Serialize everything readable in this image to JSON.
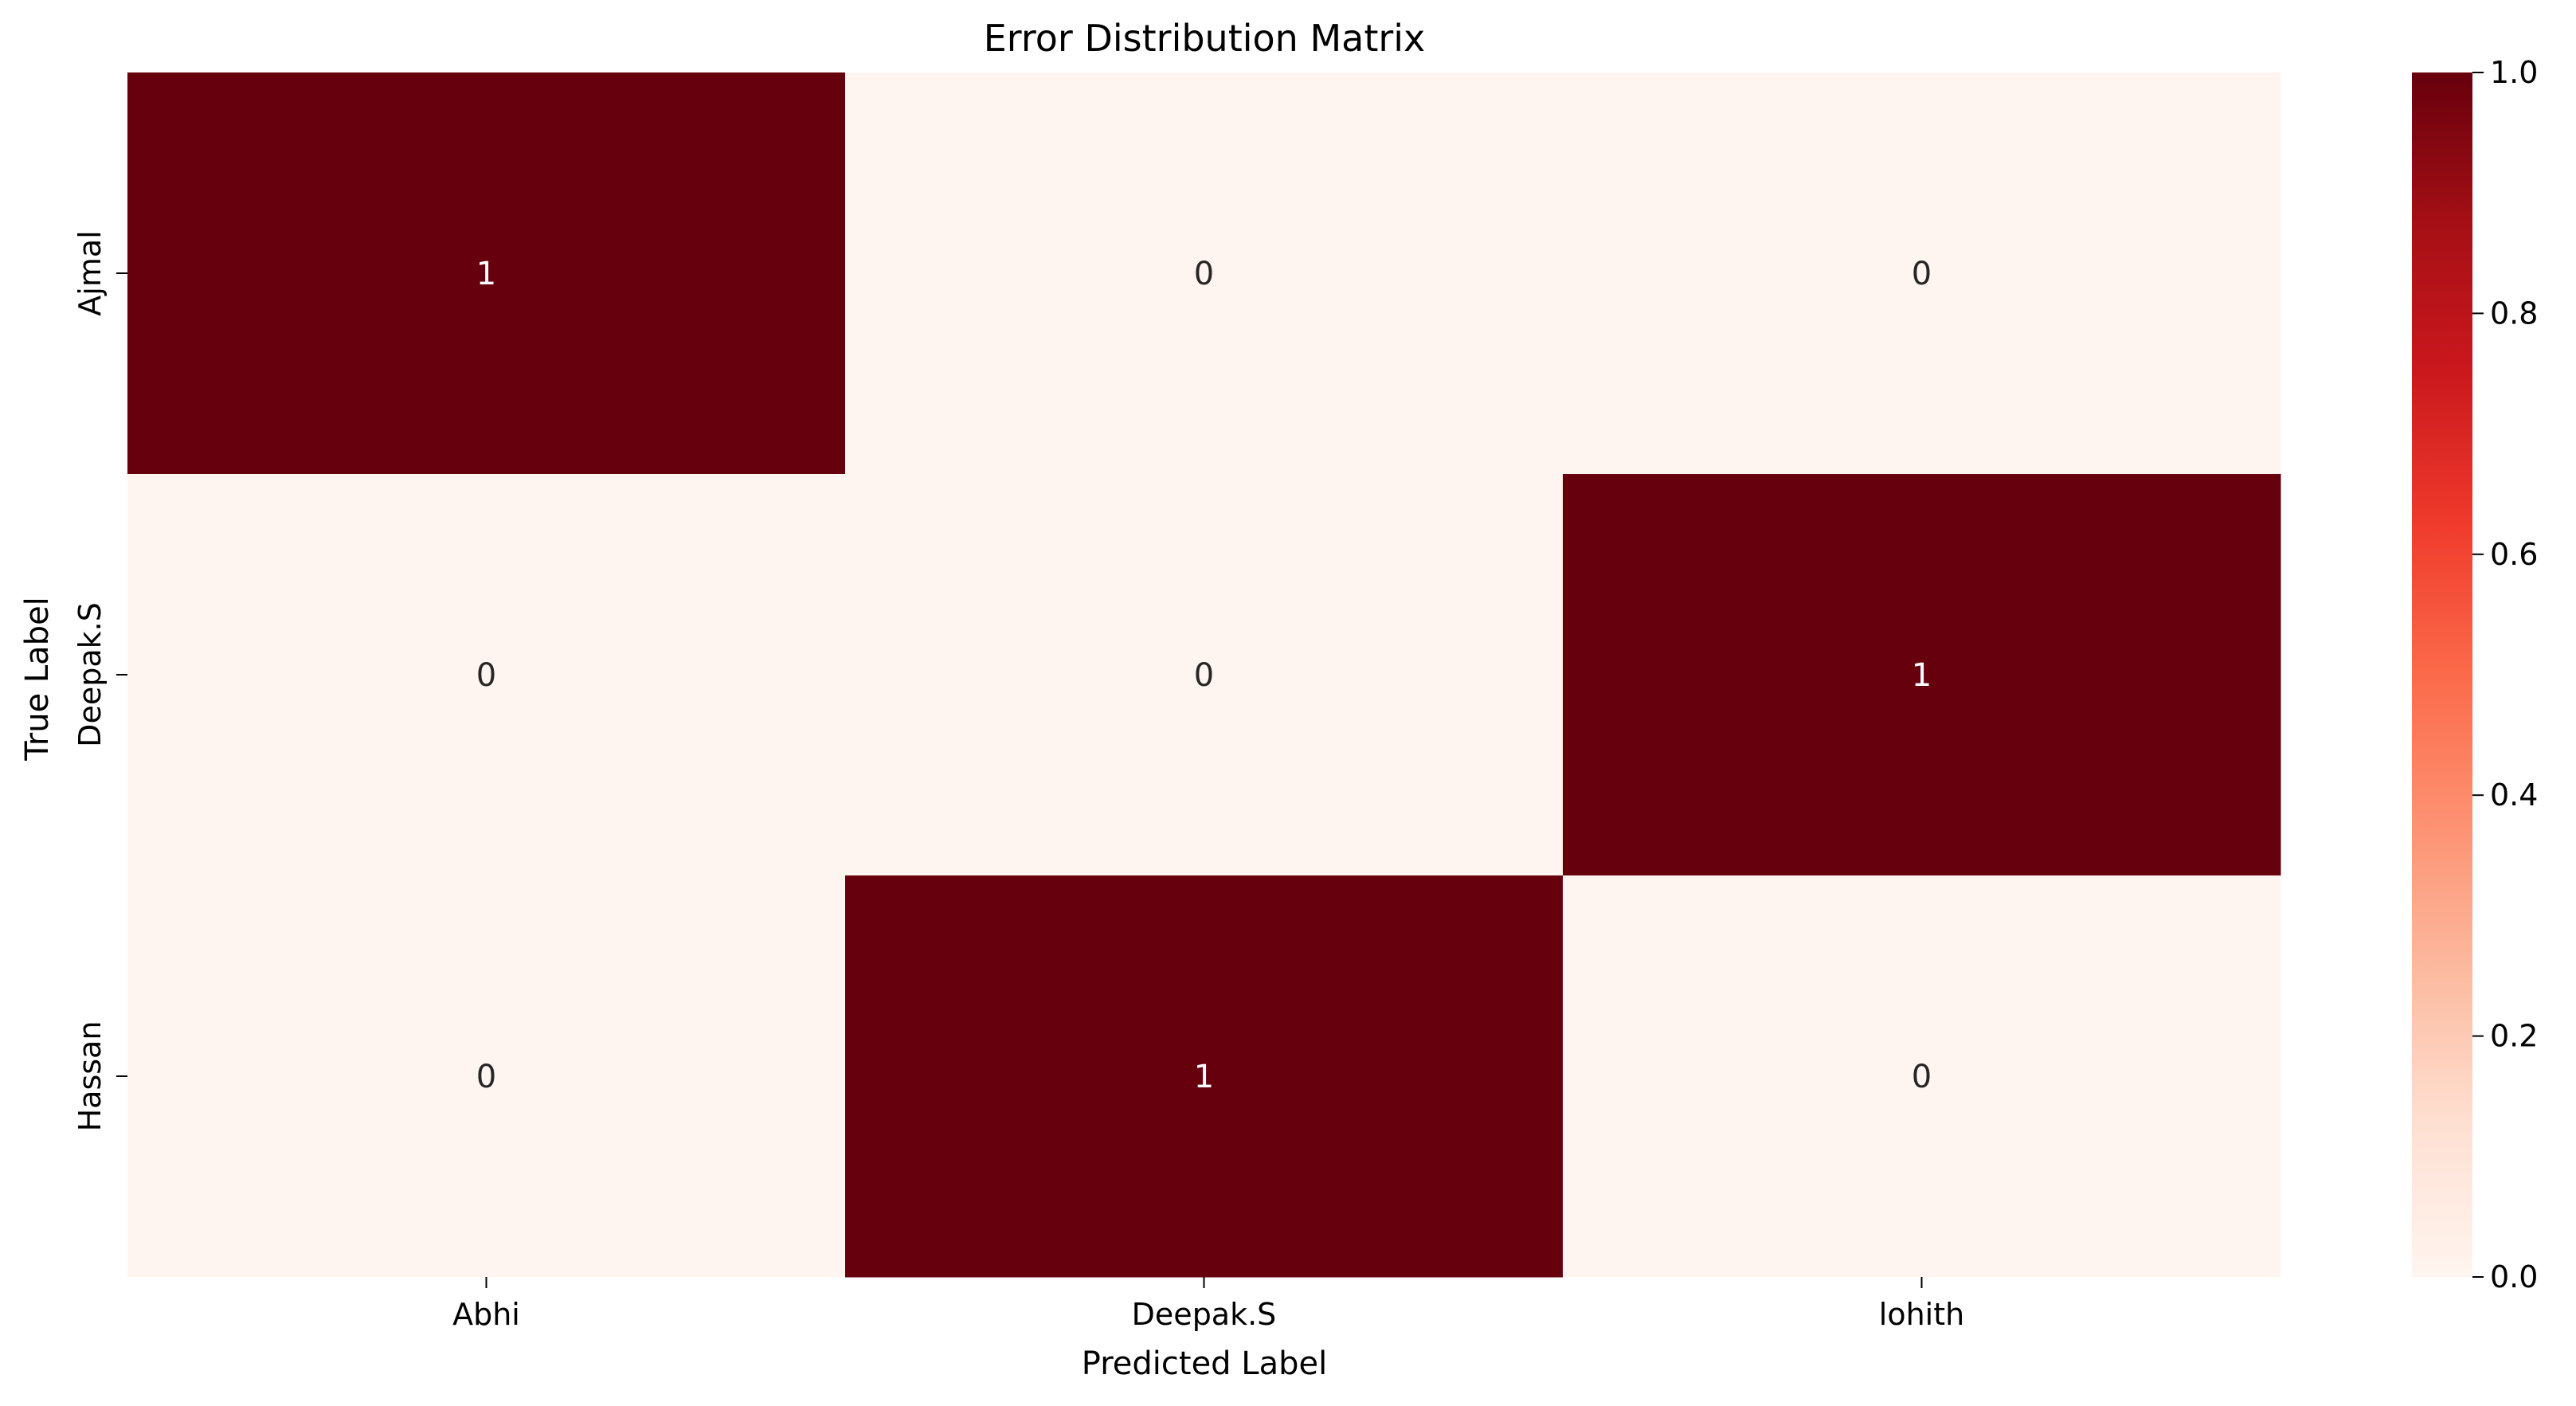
{
  "chart_data": {
    "type": "heatmap",
    "title": "Error Distribution Matrix",
    "xlabel": "Predicted Label",
    "ylabel": "True Label",
    "x_categories": [
      "Abhi",
      "Deepak.S",
      "lohith"
    ],
    "y_categories": [
      "Ajmal",
      "Deepak.S",
      "Hassan"
    ],
    "values": [
      [
        1,
        0,
        0
      ],
      [
        0,
        0,
        1
      ],
      [
        0,
        1,
        0
      ]
    ],
    "cell_labels": [
      [
        "1",
        "0",
        "0"
      ],
      [
        "0",
        "0",
        "1"
      ],
      [
        "0",
        "1",
        "0"
      ]
    ],
    "color_range": [
      0,
      1
    ],
    "colormap": "Reds",
    "low_color": "#fff5f0",
    "high_color": "#67000d",
    "colorbar_ticks": [
      "0.0",
      "0.2",
      "0.4",
      "0.6",
      "0.8",
      "1.0"
    ],
    "colorbar_tick_values": [
      0,
      0.2,
      0.4,
      0.6,
      0.8,
      1.0
    ],
    "grid": false
  }
}
